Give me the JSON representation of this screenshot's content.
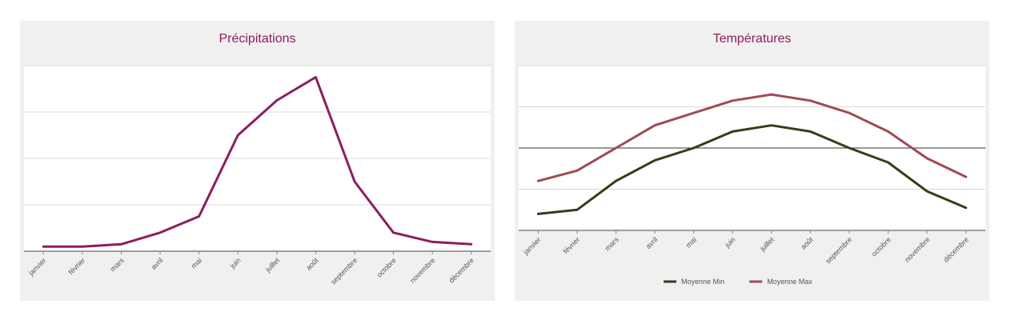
{
  "chart_data": [
    {
      "type": "line",
      "title": "Précipitations",
      "categories": [
        "janvier",
        "février",
        "mars",
        "avril",
        "mai",
        "juin",
        "juillet",
        "août",
        "septembre",
        "octobre",
        "novembre",
        "décembre"
      ],
      "series": [
        {
          "values": [
            0.1,
            0.1,
            0.15,
            0.4,
            0.75,
            2.5,
            3.25,
            3.75,
            1.5,
            0.4,
            0.2,
            0.15
          ],
          "color": "#8b1e5f"
        }
      ],
      "ylim": [
        0,
        4
      ],
      "grid": true,
      "xlabel": "",
      "ylabel": ""
    },
    {
      "type": "line",
      "title": "Températures",
      "categories": [
        "janvier",
        "février",
        "mars",
        "avril",
        "mai",
        "juin",
        "juillet",
        "août",
        "septembre",
        "octobre",
        "novembre",
        "décembre"
      ],
      "series": [
        {
          "name": "Moyenne Min",
          "values": [
            -1.6,
            -1.5,
            -0.8,
            -0.3,
            0.0,
            0.4,
            0.55,
            0.4,
            0.0,
            -0.35,
            -1.05,
            -1.45
          ],
          "color": "#3b3a1a"
        },
        {
          "name": "Moyenne Max",
          "values": [
            -0.8,
            -0.55,
            0.0,
            0.55,
            0.85,
            1.15,
            1.3,
            1.15,
            0.85,
            0.4,
            -0.25,
            -0.7
          ],
          "color": "#a04a55"
        }
      ],
      "ylim": [
        -2,
        2
      ],
      "grid": true,
      "legend": "bottom",
      "xlabel": "",
      "ylabel": ""
    }
  ]
}
